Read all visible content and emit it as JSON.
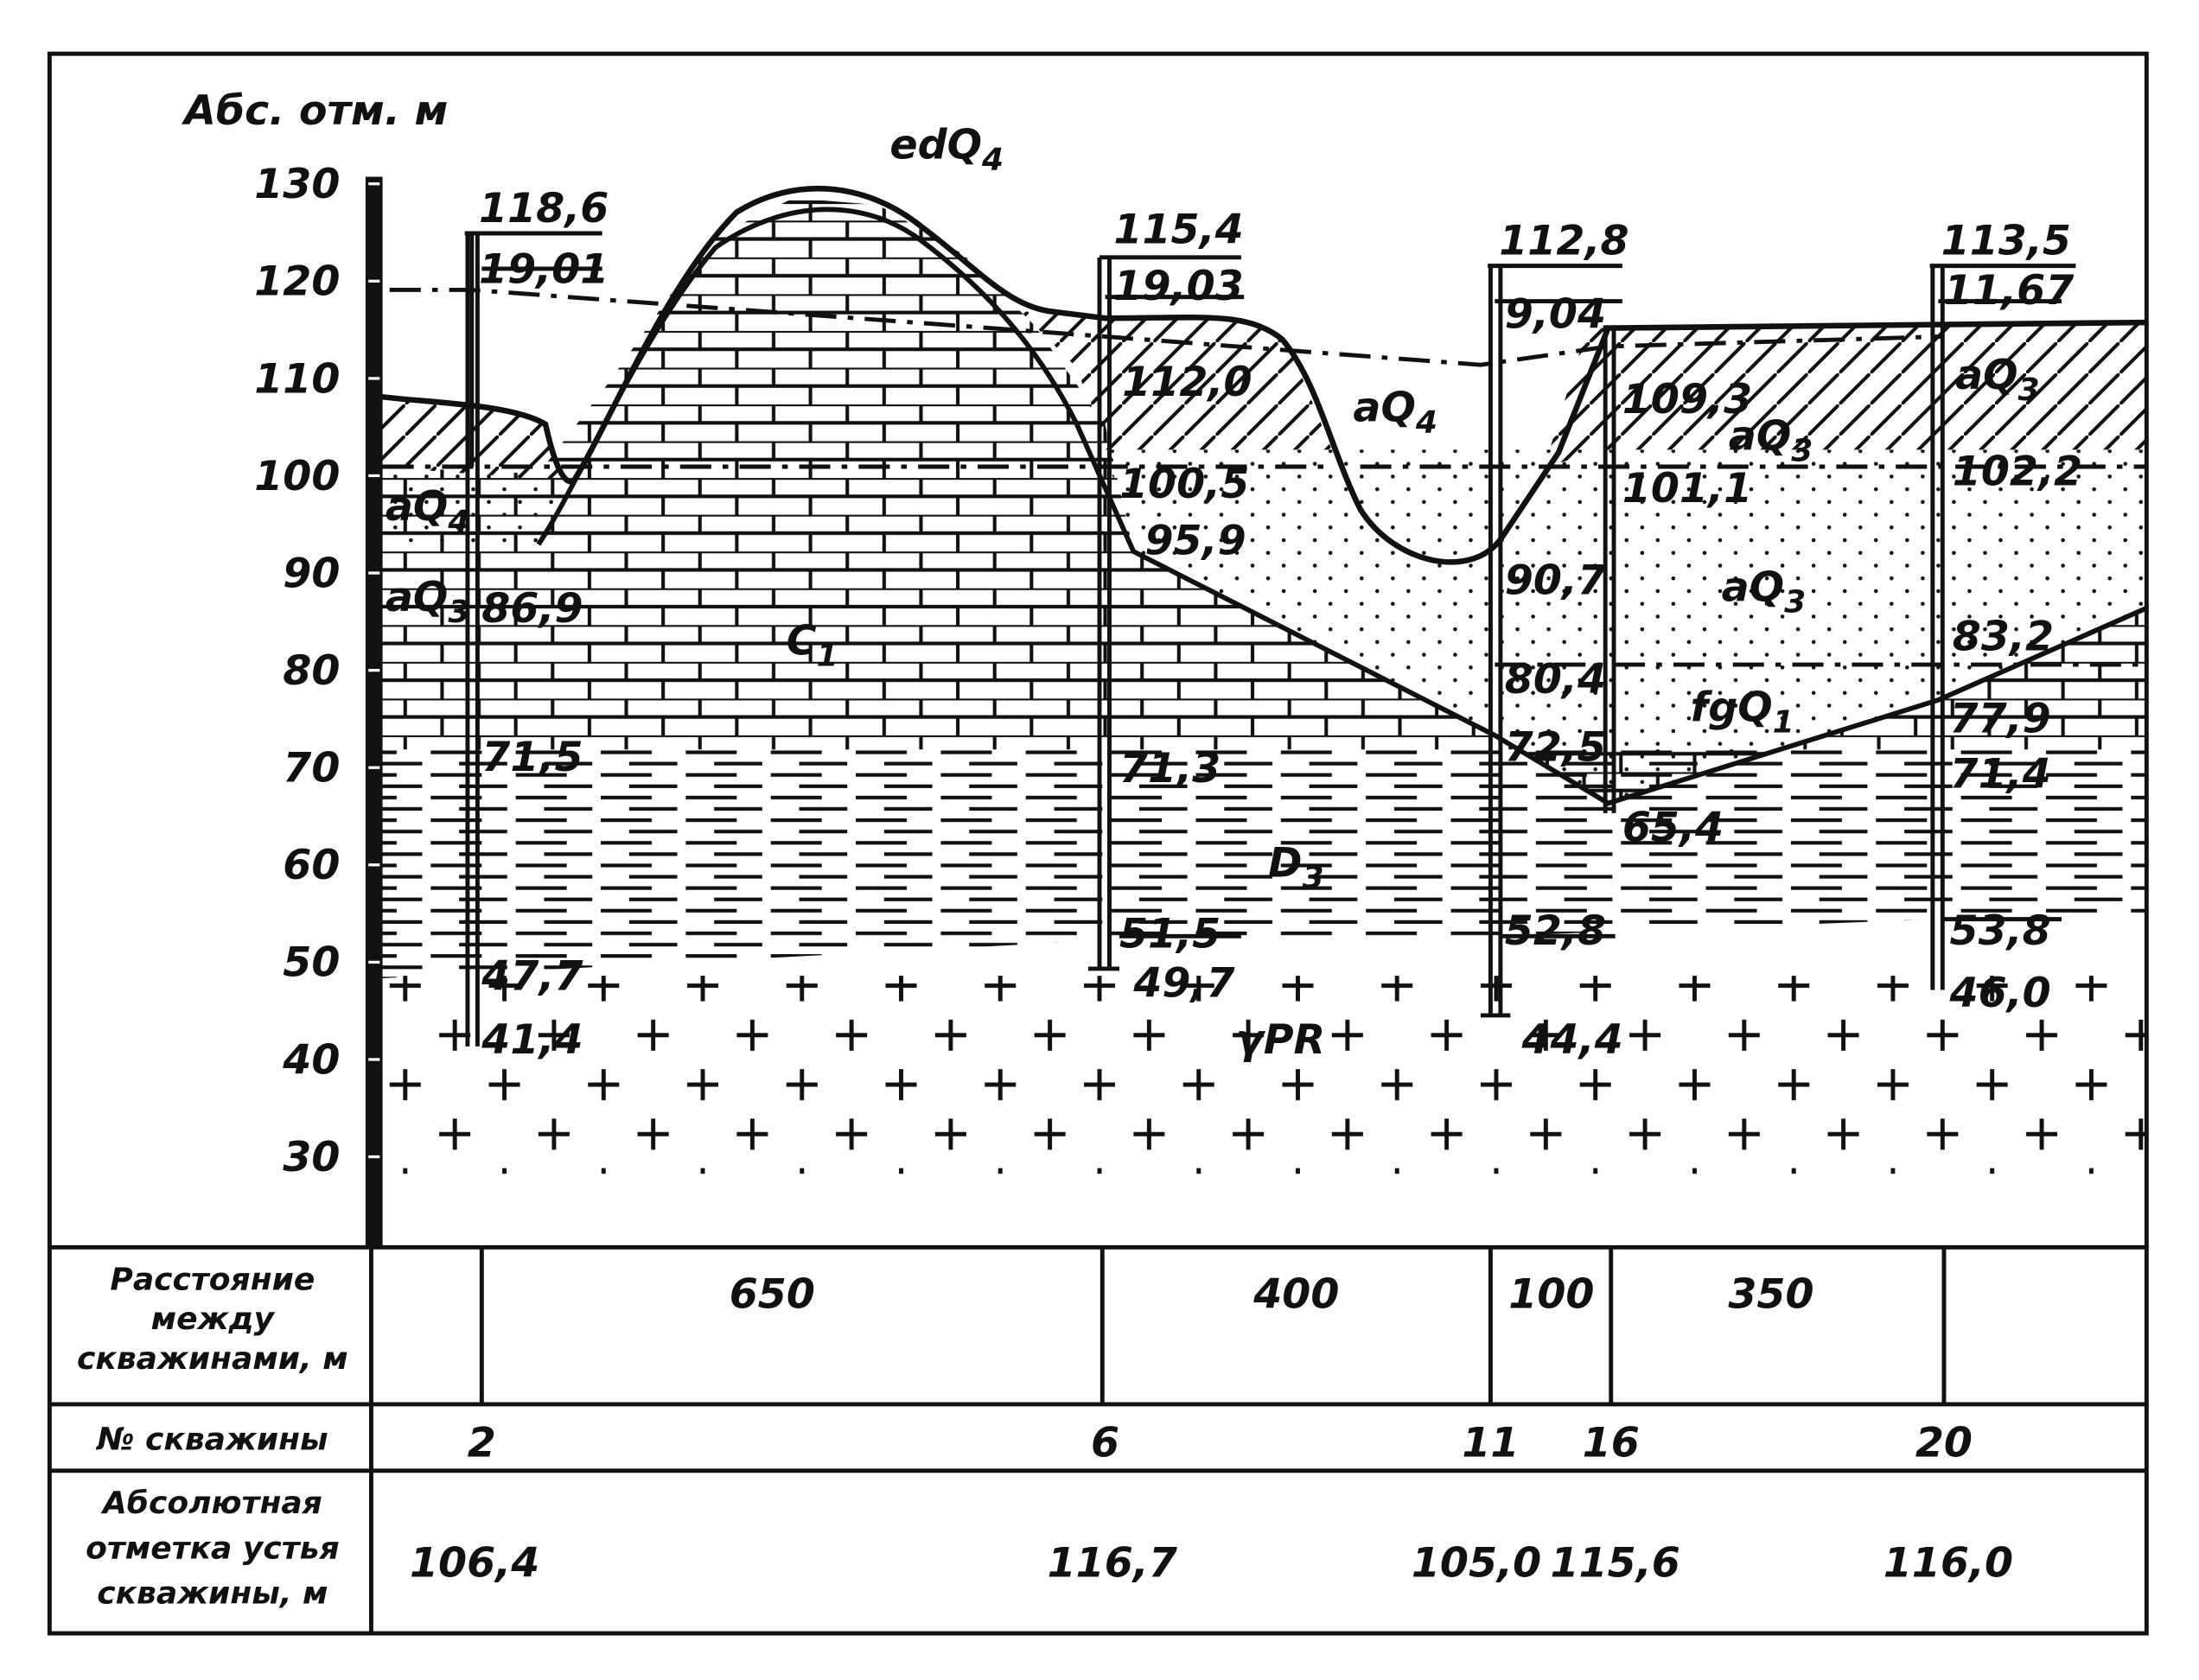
{
  "axis": {
    "title": "Абс. отм. м",
    "ticks": [
      130,
      120,
      110,
      100,
      90,
      80,
      70,
      60,
      50,
      40,
      30
    ]
  },
  "wells": [
    {
      "top": "118,6",
      "water": "19,01",
      "levels": [
        "86,9",
        "71,5",
        "47,7",
        "41,4"
      ]
    },
    {
      "top": "115,4",
      "water": "19,03",
      "levels": [
        "112,0",
        "100,5",
        "95,9",
        "71,3",
        "51,5",
        "49,7"
      ]
    },
    {
      "top": "112,8",
      "water": "9,04",
      "levels": [
        "90,7",
        "80,4",
        "72,5",
        "52,8",
        "44,4"
      ]
    },
    {
      "levels": [
        "109,3",
        "101,1",
        "65,4"
      ]
    },
    {
      "top": "113,5",
      "water": "11,67",
      "levels": [
        "102,2",
        "83,2",
        "77,9",
        "71,4",
        "53,8",
        "46,0"
      ]
    }
  ],
  "strata": [
    {
      "text": "edQ",
      "sub": "4"
    },
    {
      "text": "aQ",
      "sub": "4"
    },
    {
      "text": "aQ",
      "sub": "3"
    },
    {
      "text": "C",
      "sub": "1"
    },
    {
      "text": "aQ",
      "sub": "4"
    },
    {
      "text": "aQ",
      "sub": "3"
    },
    {
      "text": "aQ",
      "sub": "3"
    },
    {
      "text": "aQ",
      "sub": "3"
    },
    {
      "text": "fgQ",
      "sub": "1"
    },
    {
      "text": "D",
      "sub": "3"
    },
    {
      "text": "γPR"
    }
  ],
  "table": {
    "distance": {
      "label": [
        "Расстояние",
        "между",
        "скважинами, м"
      ],
      "values": [
        "650",
        "400",
        "100",
        "350"
      ]
    },
    "well_number": {
      "label": "№ скважины",
      "values": [
        "2",
        "6",
        "11",
        "16",
        "20"
      ]
    },
    "mouth_elevation": {
      "label": [
        "Абсолютная",
        "отметка устья",
        "скважины, м"
      ],
      "values": [
        "106,4",
        "116,7",
        "105,0",
        "115,6",
        "116,0"
      ]
    }
  }
}
